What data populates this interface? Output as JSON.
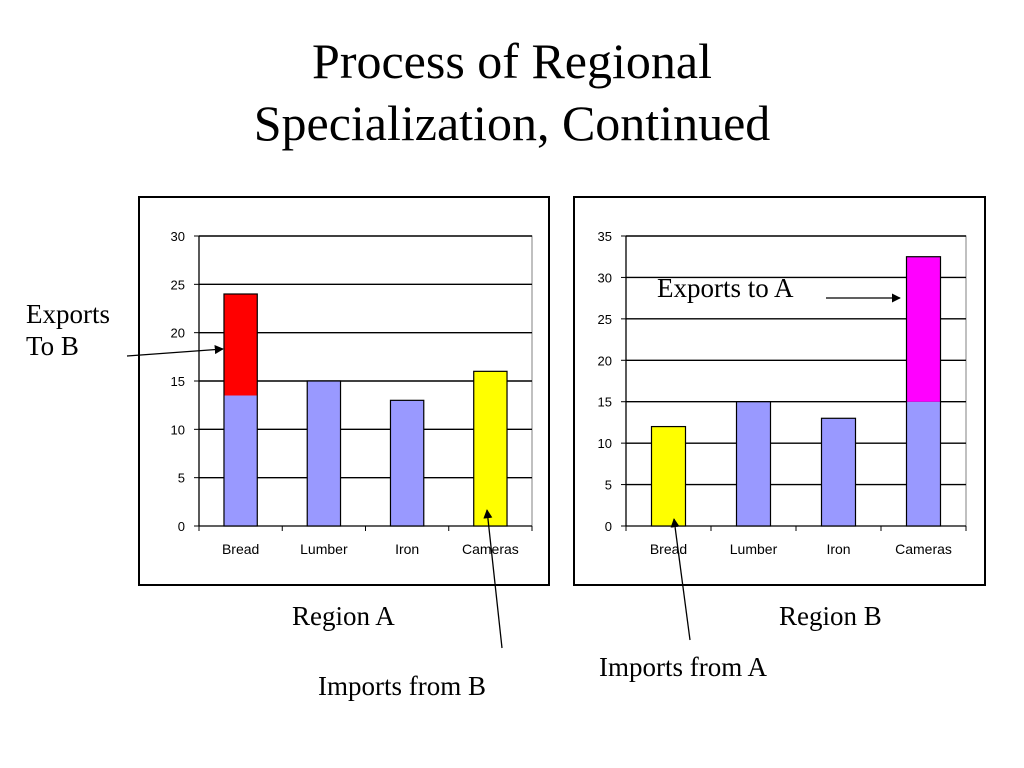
{
  "title": {
    "line1": "Process of Regional",
    "line2": "Specialization, Continued"
  },
  "colors": {
    "domestic": "#9999ff",
    "exports_a": "#ff0000",
    "exports_b": "#ff00ff",
    "imports": "#ffff00"
  },
  "annotations": {
    "exports_to_b_line1": "Exports",
    "exports_to_b_line2": "To B",
    "exports_to_a": "Exports to A",
    "region_a": "Region A",
    "region_b": "Region B",
    "imports_from_b": "Imports from B",
    "imports_from_a": "Imports from A"
  },
  "chart_data": [
    {
      "type": "bar",
      "stacked": true,
      "categories": [
        "Bread",
        "Lumber",
        "Iron",
        "Cameras"
      ],
      "ylim": [
        0,
        30
      ],
      "yticks": [
        0,
        5,
        10,
        15,
        20,
        25,
        30
      ],
      "grid": true,
      "series": [
        {
          "color": "#9999ff",
          "values": [
            13.5,
            15,
            13,
            0
          ]
        },
        {
          "color": "#ff0000",
          "values": [
            10.5,
            0,
            0,
            0
          ]
        },
        {
          "color": "#ffff00",
          "values": [
            0,
            0,
            0,
            16
          ]
        }
      ]
    },
    {
      "type": "bar",
      "stacked": true,
      "categories": [
        "Bread",
        "Lumber",
        "Iron",
        "Cameras"
      ],
      "ylim": [
        0,
        35
      ],
      "yticks": [
        0,
        5,
        10,
        15,
        20,
        25,
        30,
        35
      ],
      "grid": true,
      "series": [
        {
          "color": "#9999ff",
          "values": [
            0,
            15,
            13,
            15
          ]
        },
        {
          "color": "#ff00ff",
          "values": [
            0,
            0,
            0,
            17.5
          ]
        },
        {
          "color": "#ffff00",
          "values": [
            12,
            0,
            0,
            0
          ]
        }
      ]
    }
  ]
}
